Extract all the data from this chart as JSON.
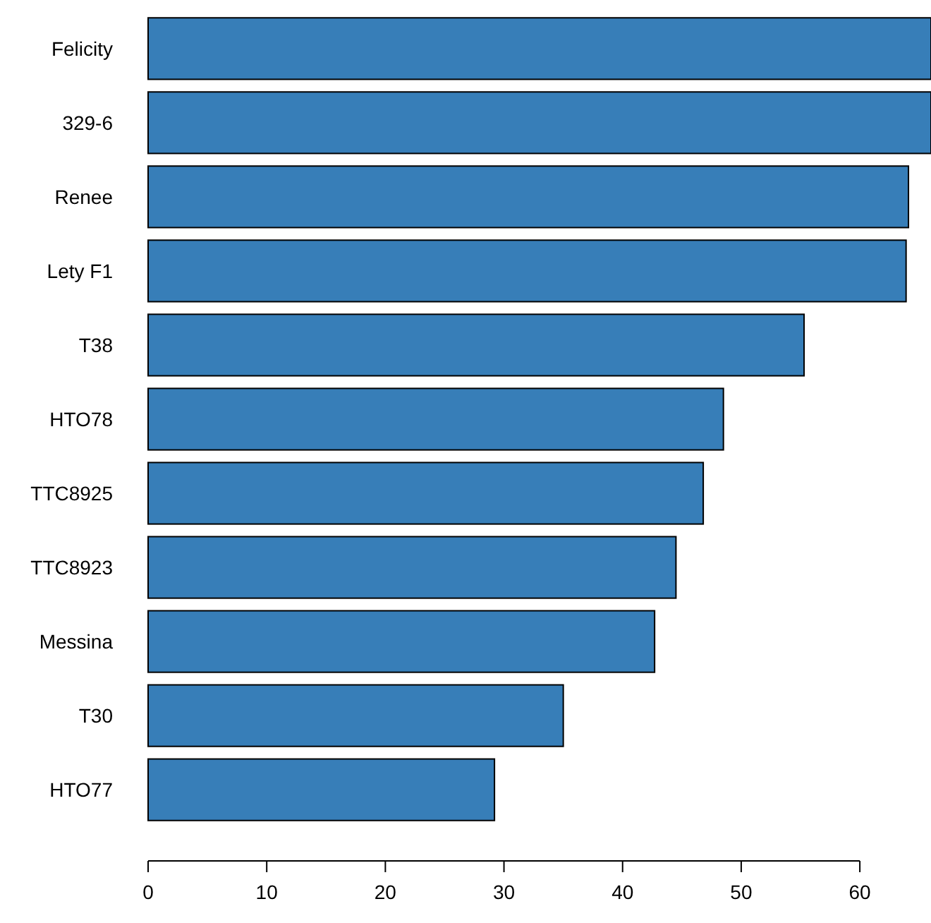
{
  "chart_data": {
    "type": "bar",
    "orientation": "horizontal",
    "categories": [
      "Felicity",
      "329-6",
      "Renee",
      "Lety F1",
      "T38",
      "HTO78",
      "TTC8925",
      "TTC8923",
      "Messina",
      "T30",
      "HTO77"
    ],
    "values": [
      66,
      66,
      64.1,
      63.9,
      55.3,
      48.5,
      46.8,
      44.5,
      42.7,
      35.0,
      29.2
    ],
    "color": "#377eb8",
    "xlim": [
      0,
      66
    ],
    "xticks": [
      0,
      10,
      20,
      30,
      40,
      50,
      60
    ],
    "grid": false
  }
}
